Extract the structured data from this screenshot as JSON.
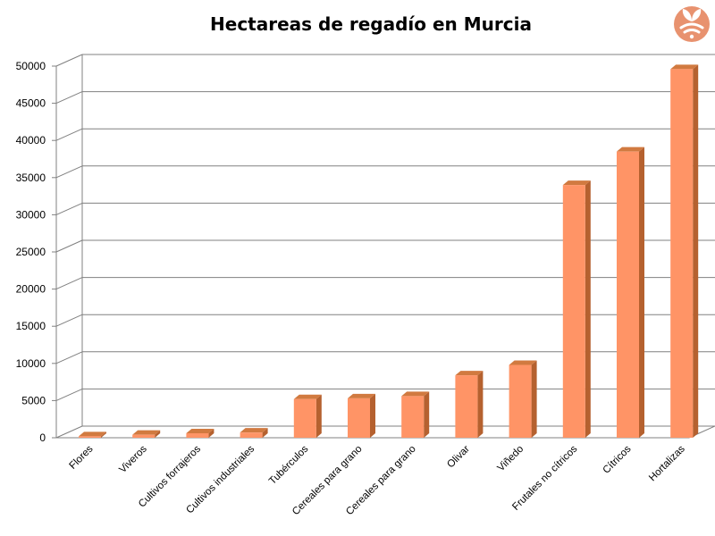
{
  "chart_data": {
    "type": "bar",
    "title": "Hectareas de regadío en Murcia",
    "xlabel": "",
    "ylabel": "",
    "ylim": [
      0,
      50000
    ],
    "yticks": [
      0,
      5000,
      10000,
      15000,
      20000,
      25000,
      30000,
      35000,
      40000,
      45000,
      50000
    ],
    "categories": [
      "Flores",
      "Viveros",
      "Cultivos forrajeros",
      "Cultivos industriales",
      "Tubérculos",
      "Cereales para grano",
      "Cereales para grano",
      "Olivar",
      "Viñedo",
      "Frutales no cítricos",
      "Cítricos",
      "Hortalizas"
    ],
    "values": [
      200,
      400,
      600,
      700,
      5200,
      5300,
      5600,
      8400,
      9800,
      34000,
      38500,
      49600
    ],
    "grid": true,
    "legend": "none",
    "colors": {
      "bar_front": "#FF9466",
      "bar_side": "#B5612F",
      "bar_top": "#D17A40",
      "grid": "#808080",
      "logo_bg": "#E8926F"
    }
  },
  "logo": {
    "icon": "leaf-wifi-logo"
  }
}
